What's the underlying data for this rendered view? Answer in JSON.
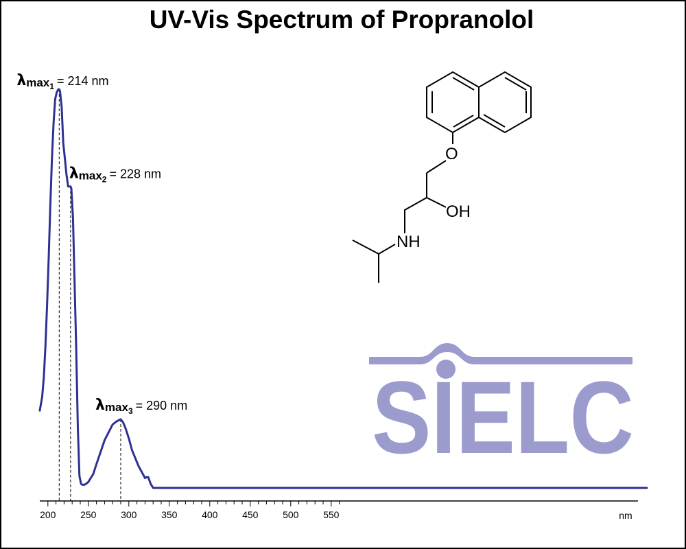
{
  "chart_data": {
    "type": "line",
    "title": "UV-Vis Spectrum of Propranolol",
    "x_unit_label": "nm",
    "xlim": [
      190,
      940
    ],
    "x_ticks": [
      200,
      250,
      300,
      350,
      400,
      450,
      500,
      550
    ],
    "x_tick_labels": [
      "200",
      "250",
      "300",
      "350",
      "400",
      "450",
      "500",
      "550"
    ],
    "minor_tick_step": 10,
    "ylim": [
      0,
      100
    ],
    "series": [
      {
        "color": "#2e3192",
        "x": [
          190,
          193,
          195,
          197,
          199,
          201,
          203,
          205,
          207,
          209,
          211,
          213,
          214,
          215,
          217,
          219,
          221,
          223,
          225,
          227,
          228,
          229,
          231,
          233,
          235,
          237,
          239,
          241,
          243,
          245,
          247,
          250,
          253,
          256,
          260,
          265,
          270,
          275,
          280,
          285,
          290,
          293,
          296,
          300,
          304,
          308,
          312,
          316,
          320,
          322,
          324,
          327,
          330,
          350,
          400,
          450,
          500,
          550,
          600,
          650,
          700,
          750,
          800,
          850,
          900,
          940
        ],
        "y": [
          19.5,
          23,
          28,
          36,
          46,
          58,
          71,
          83,
          92,
          98,
          99.8,
          100.5,
          100.5,
          100,
          96,
          87,
          83,
          79,
          76,
          76,
          76,
          75.5,
          68,
          52,
          35,
          15,
          3,
          1,
          0.8,
          0.8,
          1,
          1.5,
          2.5,
          3.5,
          6,
          9,
          12,
          14,
          16,
          16.8,
          17.3,
          16.5,
          15,
          12.5,
          9.5,
          7.5,
          5.5,
          4,
          2.5,
          2.7,
          2.7,
          1,
          0,
          0,
          0,
          0,
          0,
          0,
          0,
          0,
          0,
          0,
          0,
          0,
          0,
          0
        ]
      }
    ],
    "annotations": [
      {
        "symbol": "λ",
        "label": "max",
        "index": "1",
        "text": "= 214 nm",
        "x": 214,
        "y": 100.5
      },
      {
        "symbol": "λ",
        "label": "max",
        "index": "2",
        "text": "= 228 nm",
        "x": 228,
        "y": 76
      },
      {
        "symbol": "λ",
        "label": "max",
        "index": "3",
        "text": "= 290 nm",
        "x": 290,
        "y": 17.3
      }
    ],
    "grid": false,
    "legend": "none"
  },
  "structure": {
    "atoms": {
      "oxygen": "O",
      "hydroxyl": "OH",
      "amine": "NH"
    }
  },
  "logo": {
    "text": "SIELC",
    "color": "#9b9bcd"
  }
}
